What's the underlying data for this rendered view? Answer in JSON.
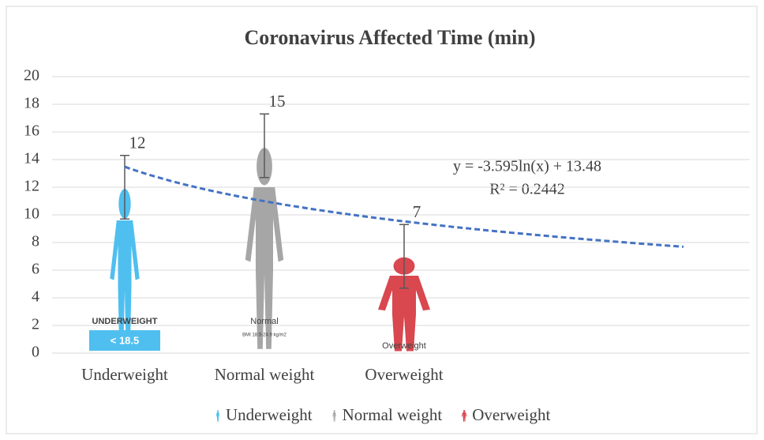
{
  "chart_data": {
    "type": "pictograph",
    "title": "Coronavirus Affected Time (min)",
    "categories": [
      "Underweight",
      "Normal weight",
      "Overweight"
    ],
    "values": [
      12,
      15,
      7
    ],
    "errors": [
      2.3,
      2.3,
      2.3
    ],
    "colors": [
      "#4fbfef",
      "#a6a6a6",
      "#d9474f"
    ],
    "series_names": [
      "Underweight",
      "Normal weight",
      "Overweight"
    ],
    "figure_captions": [
      [
        "UNDERWEIGHT",
        "< 18.5"
      ],
      [
        "Normal",
        "BMI 18.5-24.9 kg/m2"
      ],
      [
        "Overweight"
      ]
    ],
    "ylim": [
      0,
      20
    ],
    "yticks": [
      0,
      2,
      4,
      6,
      8,
      10,
      12,
      14,
      16,
      18,
      20
    ],
    "grid": true,
    "trendline": {
      "type": "log",
      "a": -3.595,
      "b": 13.48,
      "forward": 2,
      "color": "#4472c4",
      "equation": "y = -3.595ln(x) + 13.48",
      "r_squared": "R² = 0.2442"
    },
    "legend": "bottom"
  }
}
